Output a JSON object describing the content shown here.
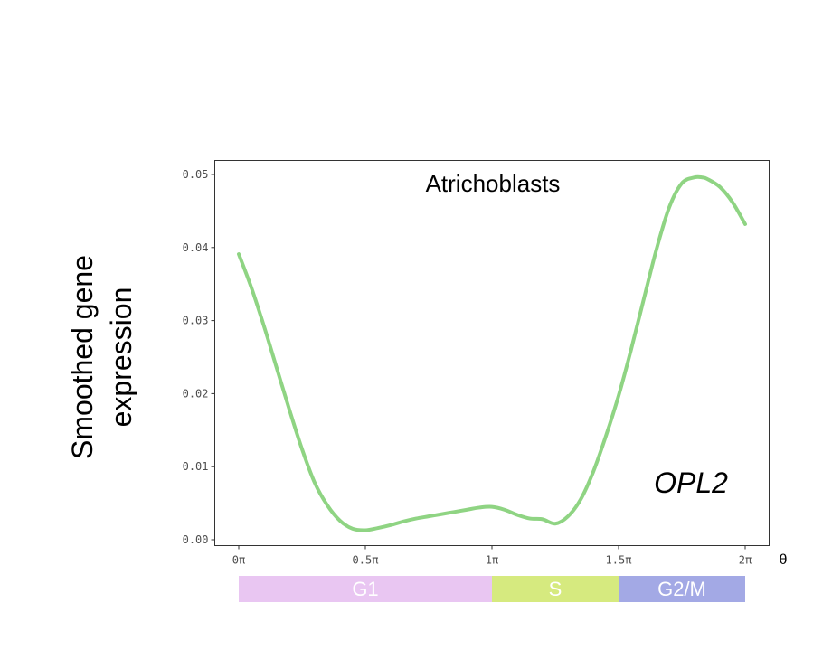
{
  "chart_data": {
    "type": "line",
    "title": "Atrichoblasts",
    "annotation": "OPL2",
    "ylabel": [
      "Smoothed gene",
      "expression"
    ],
    "xlabel": "θ",
    "x_unit": "π",
    "xlim": [
      0,
      2
    ],
    "ylim": [
      0,
      0.05
    ],
    "x_ticks": [
      0,
      0.5,
      1,
      1.5,
      2
    ],
    "x_tick_labels": [
      "0π",
      "0.5π",
      "1π",
      "1.5π",
      "2π"
    ],
    "y_ticks": [
      0,
      0.01,
      0.02,
      0.03,
      0.04,
      0.05
    ],
    "y_tick_labels": [
      "0.00",
      "0.01",
      "0.02",
      "0.03",
      "0.04",
      "0.05"
    ],
    "grid": false,
    "line_color": "#8fd483",
    "series": [
      {
        "x": [
          0,
          0.05,
          0.1,
          0.15,
          0.2,
          0.25,
          0.3,
          0.35,
          0.4,
          0.45,
          0.5,
          0.55,
          0.6,
          0.65,
          0.7,
          0.75,
          0.8,
          0.85,
          0.9,
          0.95,
          1.0,
          1.05,
          1.1,
          1.15,
          1.2,
          1.25,
          1.3,
          1.35,
          1.4,
          1.45,
          1.5,
          1.55,
          1.6,
          1.65,
          1.7,
          1.75,
          1.8,
          1.83,
          1.85,
          1.9,
          1.95,
          2.0
        ],
        "y": [
          0.0391,
          0.0345,
          0.0292,
          0.0235,
          0.0178,
          0.0124,
          0.0078,
          0.0047,
          0.0026,
          0.0015,
          0.0013,
          0.0016,
          0.002,
          0.0025,
          0.0029,
          0.0032,
          0.0035,
          0.0038,
          0.0041,
          0.0044,
          0.0045,
          0.0041,
          0.0034,
          0.0029,
          0.0028,
          0.0022,
          0.0032,
          0.0055,
          0.0093,
          0.0142,
          0.0197,
          0.0261,
          0.033,
          0.0398,
          0.0455,
          0.0488,
          0.0496,
          0.0496,
          0.0494,
          0.0483,
          0.0462,
          0.0432
        ]
      }
    ],
    "phase_bar": [
      {
        "label": "G1",
        "start": 0,
        "end": 1,
        "color": "#e9c6f2"
      },
      {
        "label": "S",
        "start": 1,
        "end": 1.5,
        "color": "#d6ea7f"
      },
      {
        "label": "G2/M",
        "start": 1.5,
        "end": 2,
        "color": "#a3a9e5"
      }
    ]
  }
}
